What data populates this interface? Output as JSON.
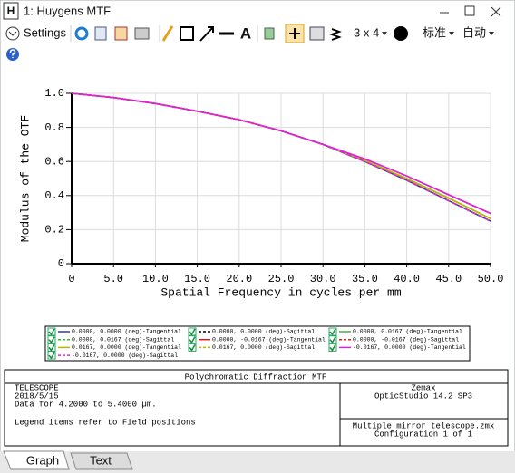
{
  "window": {
    "icon": "H",
    "title": "1: Huygens MTF"
  },
  "toolbar": {
    "settings": "Settings",
    "text_tool": "A",
    "layout": "3 x 4",
    "standard": "标准",
    "auto": "自动"
  },
  "chart_data": {
    "type": "line",
    "xlabel": "Spatial Frequency in cycles per mm",
    "ylabel": "Modulus of the OTF",
    "x": [
      0,
      5,
      10,
      15,
      20,
      25,
      30,
      35,
      40,
      45,
      50
    ],
    "xlim": [
      0,
      50
    ],
    "ylim": [
      0,
      1
    ],
    "xticks": [
      0,
      {
        "value": 5,
        "label": "5.0"
      },
      {
        "value": 10,
        "label": "10.0"
      },
      {
        "value": 15,
        "label": "15.0"
      },
      {
        "value": 20,
        "label": "20.0"
      },
      {
        "value": 25,
        "label": "25.0"
      },
      {
        "value": 30,
        "label": "30.0"
      },
      {
        "value": 35,
        "label": "35.0"
      },
      {
        "value": 40,
        "label": "40.0"
      },
      {
        "value": 45,
        "label": "45.0"
      },
      {
        "value": 50,
        "label": "50.0"
      }
    ],
    "yticks": [
      0,
      0.2,
      0.4,
      0.6,
      0.8,
      {
        "value": 1,
        "label": "1.0"
      }
    ],
    "grid": true,
    "series": [
      {
        "name": "0.0000, 0.0000 (deg)-Tangential",
        "color": "#2b3ea8",
        "dashed": false,
        "values": [
          1,
          0.975,
          0.94,
          0.895,
          0.845,
          0.78,
          0.7,
          0.6,
          0.49,
          0.37,
          0.25
        ]
      },
      {
        "name": "0.0000, 0.0000 (deg)-Sagittal",
        "color": "#000000",
        "dashed": true,
        "values": [
          1,
          0.975,
          0.94,
          0.895,
          0.845,
          0.78,
          0.7,
          0.6,
          0.49,
          0.37,
          0.25
        ]
      },
      {
        "name": "0.0000, 0.0167 (deg)-Tangential",
        "color": "#33bb33",
        "dashed": false,
        "values": [
          1,
          0.975,
          0.94,
          0.895,
          0.845,
          0.78,
          0.7,
          0.605,
          0.5,
          0.385,
          0.265
        ]
      },
      {
        "name": "0.0000, 0.0167 (deg)-Sagittal",
        "color": "#33bb33",
        "dashed": true,
        "values": [
          1,
          0.975,
          0.94,
          0.895,
          0.845,
          0.78,
          0.7,
          0.6,
          0.49,
          0.37,
          0.25
        ]
      },
      {
        "name": "0.0000, -0.0167 (deg)-Tangential",
        "color": "#cc2222",
        "dashed": false,
        "values": [
          1,
          0.975,
          0.94,
          0.895,
          0.845,
          0.78,
          0.7,
          0.615,
          0.515,
          0.405,
          0.295
        ]
      },
      {
        "name": "0.0000, -0.0167 (deg)-Sagittal",
        "color": "#cc2222",
        "dashed": true,
        "values": [
          1,
          0.975,
          0.94,
          0.895,
          0.845,
          0.78,
          0.7,
          0.6,
          0.49,
          0.37,
          0.25
        ]
      },
      {
        "name": "0.0167, 0.0000 (deg)-Tangential",
        "color": "#b8b800",
        "dashed": false,
        "values": [
          1,
          0.975,
          0.94,
          0.895,
          0.845,
          0.78,
          0.7,
          0.605,
          0.5,
          0.385,
          0.265
        ]
      },
      {
        "name": "0.0167, 0.0000 (deg)-Sagittal",
        "color": "#b8b800",
        "dashed": true,
        "values": [
          1,
          0.975,
          0.94,
          0.895,
          0.845,
          0.78,
          0.7,
          0.6,
          0.49,
          0.37,
          0.25
        ]
      },
      {
        "name": "-0.0167, 0.0000 (deg)-Tangential",
        "color": "#e020e0",
        "dashed": false,
        "values": [
          1,
          0.975,
          0.94,
          0.895,
          0.845,
          0.78,
          0.7,
          0.615,
          0.515,
          0.405,
          0.295
        ]
      },
      {
        "name": "-0.0167, 0.0000 (deg)-Sagittal",
        "color": "#e020e0",
        "dashed": true,
        "values": [
          1,
          0.975,
          0.94,
          0.895,
          0.845,
          0.78,
          0.7,
          0.6,
          0.49,
          0.37,
          0.25
        ]
      }
    ]
  },
  "info": {
    "title": "Polychromatic Diffraction MTF",
    "left": [
      "TELESCOPE",
      "2018/5/15",
      "Data for 4.2000 to 5.4000 µm.",
      "Legend items refer to Field positions"
    ],
    "right_top": [
      "Zemax",
      "OpticStudio 14.2 SP3"
    ],
    "right_bottom": [
      "Multiple mirror telescope.zmx",
      "Configuration 1 of 1"
    ]
  },
  "tabs": [
    "Graph",
    "Text"
  ]
}
